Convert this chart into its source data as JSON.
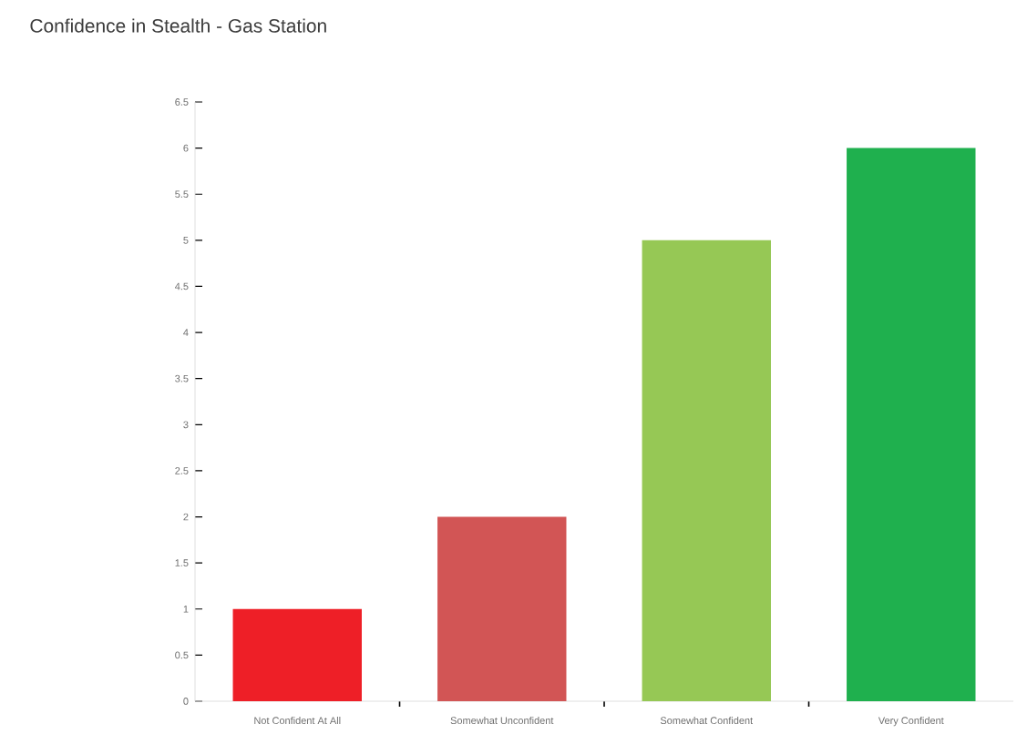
{
  "chart_data": {
    "type": "bar",
    "title": "Confidence in Stealth - Gas Station",
    "categories": [
      "Not Confident At All",
      "Somewhat Unconfident",
      "Somewhat Confident",
      "Very Confident"
    ],
    "values": [
      1,
      2,
      5,
      6
    ],
    "colors": [
      "#ee1f27",
      "#d25555",
      "#96c855",
      "#1fb04e"
    ],
    "ylim": [
      0,
      6.5
    ],
    "yticks": [
      0,
      {
        "value": 0.5,
        "label": "0.5"
      },
      1,
      {
        "value": 1.5,
        "label": "1.5"
      },
      2,
      {
        "value": 2.5,
        "label": "2.5"
      },
      3,
      {
        "value": 3.5,
        "label": "3.5"
      },
      4,
      {
        "value": 4.5,
        "label": "4.5"
      },
      5,
      {
        "value": 5.5,
        "label": "5.5"
      },
      6,
      {
        "value": 6.5,
        "label": "6.5"
      }
    ],
    "grid": false
  }
}
